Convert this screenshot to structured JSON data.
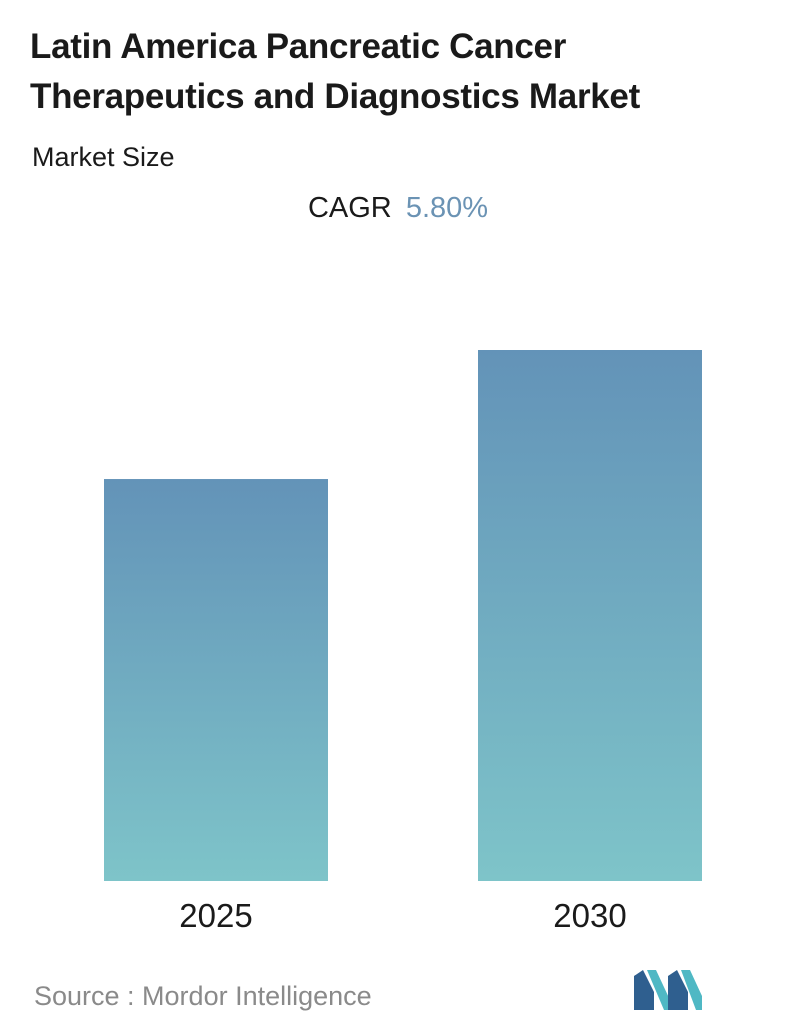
{
  "title": "Latin America Pancreatic Cancer Therapeutics and Diagnostics Market",
  "subtitle": "Market Size",
  "cagr": {
    "label": "CAGR",
    "value": "5.80%"
  },
  "source": "Source :  Mordor Intelligence",
  "colors": {
    "bar_top": "#6393b8",
    "bar_bottom": "#7ec4c9",
    "accent": "#6b93b4",
    "logo_dark": "#2f5f8f",
    "logo_light": "#4fb8c4"
  },
  "chart_data": {
    "type": "bar",
    "title": "Latin America Pancreatic Cancer Therapeutics and Diagnostics Market",
    "subtitle": "Market Size",
    "categories": [
      "2025",
      "2030"
    ],
    "values": [
      0.757,
      1.0
    ],
    "value_note": "relative bar heights, no values printed",
    "xlabel": "",
    "ylabel": "",
    "ylim": [
      0,
      1.0
    ],
    "grid": false,
    "legend": "none"
  }
}
